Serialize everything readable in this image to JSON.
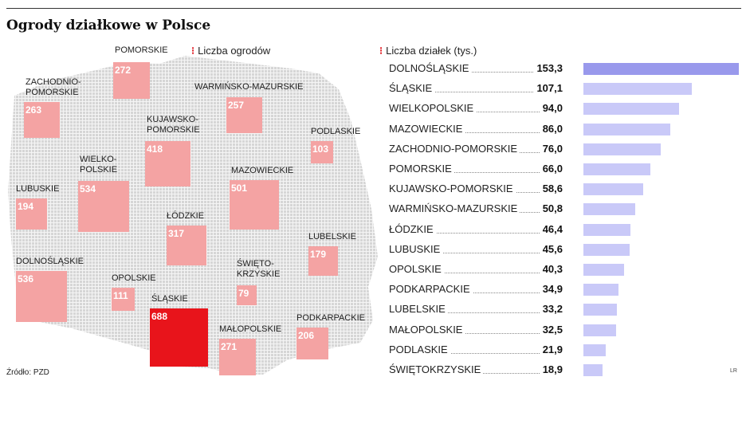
{
  "title": "Ogrody działkowe w Polsce",
  "legend_left": "Liczba ogrodów",
  "legend_right": "Liczba działek (tys.)",
  "source": "Źródło: PZD",
  "credit": "LR",
  "colors": {
    "square": "#f4a3a3",
    "square_highlight": "#e8141b",
    "bar": "#c9c9f8",
    "bar_top": "#9999ec",
    "marker": "#e01b22"
  },
  "chart_data": [
    {
      "type": "map-squares",
      "label": "Liczba ogrodów",
      "regions": [
        {
          "name": "POMORSKIE",
          "value": 272
        },
        {
          "name": "ZACHODNIO-POMORSKIE",
          "value": 263
        },
        {
          "name": "WARMIŃSKO-MAZURSKIE",
          "value": 257
        },
        {
          "name": "KUJAWSKO-POMORSKIE",
          "value": 418
        },
        {
          "name": "PODLASKIE",
          "value": 103
        },
        {
          "name": "WIELKOPOLSKIE",
          "value": 534
        },
        {
          "name": "MAZOWIECKIE",
          "value": 501
        },
        {
          "name": "LUBUSKIE",
          "value": 194
        },
        {
          "name": "ŁÓDZKIE",
          "value": 317
        },
        {
          "name": "LUBELSKIE",
          "value": 179
        },
        {
          "name": "DOLNOŚLĄSKIE",
          "value": 536
        },
        {
          "name": "OPOLSKIE",
          "value": 111
        },
        {
          "name": "ŚWIĘTOKRZYSKIE",
          "value": 79
        },
        {
          "name": "ŚLĄSKIE",
          "value": 688
        },
        {
          "name": "MAŁOPOLSKIE",
          "value": 271
        },
        {
          "name": "PODKARPACKIE",
          "value": 206
        }
      ]
    },
    {
      "type": "bar",
      "orientation": "horizontal",
      "label": "Liczba działek (tys.)",
      "categories": [
        "DOLNOŚLĄSKIE",
        "ŚLĄSKIE",
        "WIELKOPOLSKIE",
        "MAZOWIECKIE",
        "ZACHODNIO-POMORSKIE",
        "POMORSKIE",
        "KUJAWSKO-POMORSKIE",
        "WARMIŃSKO-MAZURSKIE",
        "ŁÓDZKIE",
        "LUBUSKIE",
        "OPOLSKIE",
        "PODKARPACKIE",
        "LUBELSKIE",
        "MAŁOPOLSKIE",
        "PODLASKIE",
        "ŚWIĘTOKRZYSKIE"
      ],
      "values": [
        153.3,
        107.1,
        94.0,
        86.0,
        76.0,
        66.0,
        58.6,
        50.8,
        46.4,
        45.6,
        40.3,
        34.9,
        33.2,
        32.5,
        21.9,
        18.9
      ],
      "value_labels": [
        "153,3",
        "107,1",
        "94,0",
        "86,0",
        "76,0",
        "66,0",
        "58,6",
        "50,8",
        "46,4",
        "45,6",
        "40,3",
        "34,9",
        "33,2",
        "32,5",
        "21,9",
        "18,9"
      ],
      "xlim": [
        0,
        153.3
      ]
    }
  ]
}
